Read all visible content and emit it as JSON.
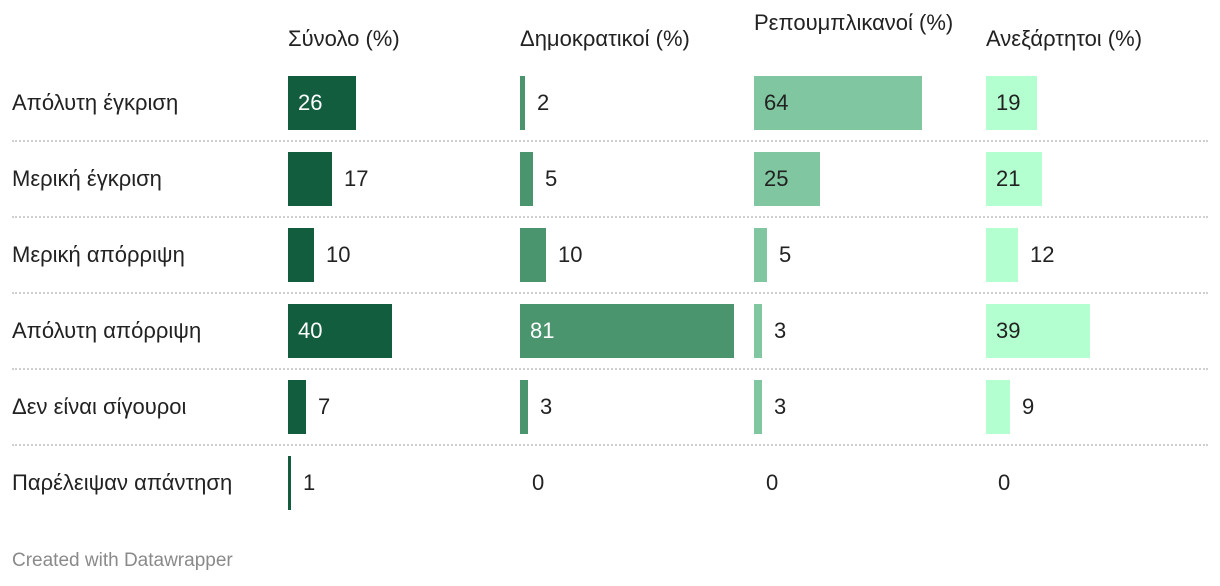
{
  "chart_data": {
    "type": "table",
    "columns": [
      {
        "name": "Σύνολο (%)",
        "color": "#125d3e",
        "label_color_inside": "#ffffff",
        "max": 40
      },
      {
        "name": "Δημοκρατικοί (%)",
        "color": "#4a956e",
        "label_color_inside": "#ffffff",
        "max": 81
      },
      {
        "name": "Ρεπουμπλικανοί (%)",
        "color": "#80c7a1",
        "label_color_inside": "#222222",
        "max": 64
      },
      {
        "name": "Ανεξάρτητοι (%)",
        "color": "#b3ffd0",
        "label_color_inside": "#222222",
        "max": 39
      }
    ],
    "rows": [
      {
        "label": "Απόλυτη έγκριση",
        "values": [
          26,
          2,
          64,
          19
        ]
      },
      {
        "label": "Μερική έγκριση",
        "values": [
          17,
          5,
          25,
          21
        ]
      },
      {
        "label": "Μερική απόρριψη",
        "values": [
          10,
          10,
          5,
          12
        ]
      },
      {
        "label": "Απόλυτη απόρριψη",
        "values": [
          40,
          81,
          3,
          39
        ]
      },
      {
        "label": "Δεν είναι σίγουροι",
        "values": [
          7,
          3,
          3,
          9
        ]
      },
      {
        "label": "Παρέλειψαν απάντηση",
        "values": [
          1,
          0,
          0,
          0
        ]
      }
    ]
  },
  "footer": "Created with Datawrapper"
}
